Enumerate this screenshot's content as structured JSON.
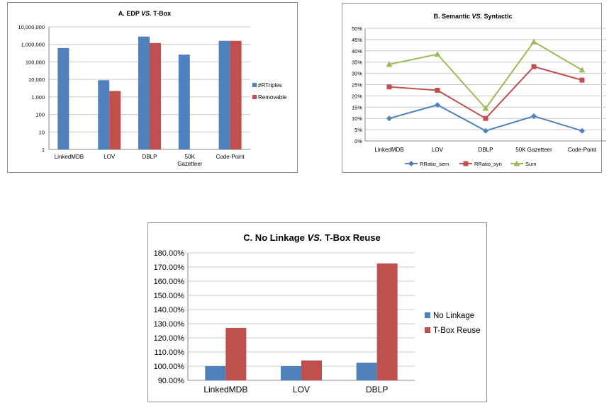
{
  "chart_data": [
    {
      "id": "A",
      "type": "bar",
      "title": "A. EDP VS. T-Box",
      "title_parts": [
        "A. EDP ",
        "VS.",
        " T-Box"
      ],
      "yscale": "log",
      "ylim": [
        1,
        10000000
      ],
      "yticks": [
        "1",
        "10",
        "100",
        "1,000",
        "10,000",
        "100,000",
        "1,000,000",
        "10,000,000"
      ],
      "categories": [
        [
          "LinkedMDB"
        ],
        [
          "LOV"
        ],
        [
          "DBLP"
        ],
        [
          "50K",
          "Gazetteer"
        ],
        [
          "Code-Point"
        ]
      ],
      "series": [
        {
          "name": "#RTriples",
          "color": "#4f81bd",
          "values": [
            620000,
            9000,
            2800000,
            260000,
            1600000
          ]
        },
        {
          "name": "Removable",
          "color": "#c0504d",
          "values": [
            null,
            2200,
            1200000,
            null,
            1600000
          ]
        }
      ],
      "legend": "right",
      "grid": true
    },
    {
      "id": "B",
      "type": "line",
      "title": "B. Semantic VS. Syntactic",
      "title_parts": [
        "B. Semantic ",
        "VS.",
        " Syntactic"
      ],
      "ylim": [
        0,
        50
      ],
      "yticks": [
        "0%",
        "5%",
        "10%",
        "15%",
        "20%",
        "25%",
        "30%",
        "35%",
        "40%",
        "45%",
        "50%"
      ],
      "categories": [
        "LinkedMDB",
        "LOV",
        "DBLP",
        "50K Gazetteer",
        "Code-Point"
      ],
      "series": [
        {
          "name": "RRatio_sem",
          "color": "#4f81bd",
          "marker": "diamond",
          "values": [
            10,
            16,
            4.5,
            11,
            4.5
          ]
        },
        {
          "name": "RRatio_syn",
          "color": "#c0504d",
          "marker": "square",
          "values": [
            24,
            22.5,
            10,
            33,
            27
          ]
        },
        {
          "name": "Sum",
          "color": "#9bbb59",
          "marker": "triangle",
          "values": [
            34,
            38.5,
            14.5,
            44,
            31.5
          ]
        }
      ],
      "legend": "bottom",
      "grid": true
    },
    {
      "id": "C",
      "type": "bar",
      "title": "C. No Linkage VS. T-Box Reuse",
      "title_parts": [
        "C. No Linkage ",
        "VS.",
        " T-Box Reuse"
      ],
      "ylim": [
        90,
        180
      ],
      "yticks": [
        "90.00%",
        "100.00%",
        "110.00%",
        "120.00%",
        "130.00%",
        "140.00%",
        "150.00%",
        "160.00%",
        "170.00%",
        "180.00%"
      ],
      "categories": [
        [
          "LinkedMDB"
        ],
        [
          "LOV"
        ],
        [
          "DBLP"
        ]
      ],
      "series": [
        {
          "name": "No Linkage",
          "color": "#4f81bd",
          "values": [
            100,
            100,
            102.5
          ]
        },
        {
          "name": "T-Box Reuse",
          "color": "#c0504d",
          "values": [
            127,
            104,
            172.5
          ]
        }
      ],
      "legend": "right",
      "grid": true
    }
  ]
}
